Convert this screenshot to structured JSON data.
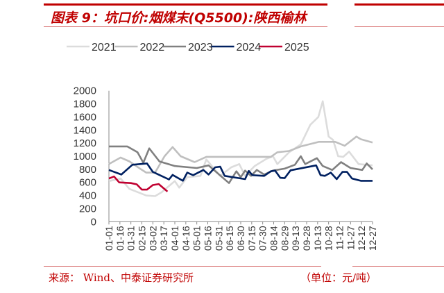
{
  "title": "图表 9：坑口价:烟煤末(Q5500):陕西榆林",
  "source": "来源：  Wind、中泰证券研究所",
  "unit": "（单位：元/吨）",
  "chart_data": {
    "type": "line",
    "title": "图表 9：坑口价:烟煤末(Q5500):陕西榆林",
    "xlabel": "",
    "ylabel": "",
    "ylim": [
      0,
      2000
    ],
    "yticks": [
      "0",
      "200",
      "400",
      "600",
      "800",
      "1000",
      "1200",
      "1400",
      "1600",
      "1800",
      "2000"
    ],
    "xticks": [
      "01-01",
      "01-16",
      "01-31",
      "02-15",
      "03-02",
      "03-17",
      "04-01",
      "04-16",
      "05-01",
      "05-16",
      "05-31",
      "06-15",
      "06-30",
      "07-15",
      "07-30",
      "08-14",
      "08-29",
      "09-13",
      "09-28",
      "10-13",
      "10-28",
      "11-12",
      "11-27",
      "12-12",
      "12-27"
    ],
    "grid": false,
    "legend": "top",
    "series": [
      {
        "name": "2021",
        "color": "#dcdcdc",
        "points": [
          [
            "01-01",
            620
          ],
          [
            "01-17",
            660
          ],
          [
            "01-29",
            500
          ],
          [
            "02-21",
            400
          ],
          [
            "03-05",
            390
          ],
          [
            "03-14",
            450
          ],
          [
            "04-01",
            620
          ],
          [
            "04-07",
            520
          ],
          [
            "04-18",
            680
          ],
          [
            "05-06",
            700
          ],
          [
            "05-14",
            950
          ],
          [
            "06-02",
            700
          ],
          [
            "06-17",
            830
          ],
          [
            "06-28",
            880
          ],
          [
            "07-06",
            700
          ],
          [
            "07-19",
            850
          ],
          [
            "08-04",
            960
          ],
          [
            "08-13",
            1000
          ],
          [
            "08-19",
            880
          ],
          [
            "09-04",
            1060
          ],
          [
            "09-20",
            1180
          ],
          [
            "10-03",
            1480
          ],
          [
            "10-14",
            1600
          ],
          [
            "10-20",
            1840
          ],
          [
            "10-28",
            1300
          ],
          [
            "11-03",
            1250
          ],
          [
            "11-10",
            1000
          ],
          [
            "11-17",
            990
          ],
          [
            "11-25",
            1070
          ],
          [
            "12-08",
            880
          ],
          [
            "12-27",
            860
          ]
        ]
      },
      {
        "name": "2022",
        "color": "#bfbfbf",
        "points": [
          [
            "01-01",
            880
          ],
          [
            "01-17",
            980
          ],
          [
            "01-29",
            920
          ],
          [
            "02-14",
            800
          ],
          [
            "02-21",
            750
          ],
          [
            "03-05",
            750
          ],
          [
            "03-18",
            1000
          ],
          [
            "03-29",
            1140
          ],
          [
            "04-09",
            1000
          ],
          [
            "04-28",
            910
          ],
          [
            "05-14",
            990
          ],
          [
            "08-10",
            990
          ],
          [
            "08-19",
            1060
          ],
          [
            "09-04",
            1080
          ],
          [
            "09-20",
            1150
          ],
          [
            "10-15",
            1220
          ],
          [
            "11-06",
            1220
          ],
          [
            "11-19",
            1160
          ],
          [
            "12-05",
            1300
          ],
          [
            "12-11",
            1260
          ],
          [
            "12-27",
            1210
          ]
        ]
      },
      {
        "name": "2023",
        "color": "#808080",
        "points": [
          [
            "01-01",
            1150
          ],
          [
            "01-26",
            1150
          ],
          [
            "02-09",
            1060
          ],
          [
            "02-17",
            900
          ],
          [
            "02-25",
            1120
          ],
          [
            "03-11",
            920
          ],
          [
            "04-01",
            850
          ],
          [
            "05-01",
            820
          ],
          [
            "05-17",
            860
          ],
          [
            "06-14",
            590
          ],
          [
            "06-24",
            770
          ],
          [
            "06-30",
            680
          ],
          [
            "07-06",
            780
          ],
          [
            "07-14",
            700
          ],
          [
            "07-22",
            790
          ],
          [
            "08-01",
            720
          ],
          [
            "08-13",
            780
          ],
          [
            "08-29",
            810
          ],
          [
            "09-12",
            870
          ],
          [
            "09-20",
            1000
          ],
          [
            "09-26",
            880
          ],
          [
            "10-12",
            970
          ],
          [
            "10-20",
            850
          ],
          [
            "11-02",
            790
          ],
          [
            "11-14",
            910
          ],
          [
            "11-27",
            820
          ],
          [
            "12-13",
            790
          ],
          [
            "12-19",
            890
          ],
          [
            "12-27",
            800
          ]
        ]
      },
      {
        "name": "2024",
        "color": "#002060",
        "points": [
          [
            "01-01",
            790
          ],
          [
            "01-18",
            720
          ],
          [
            "02-02",
            870
          ],
          [
            "02-22",
            890
          ],
          [
            "03-02",
            760
          ],
          [
            "03-24",
            645
          ],
          [
            "03-29",
            715
          ],
          [
            "04-12",
            625
          ],
          [
            "04-18",
            750
          ],
          [
            "04-26",
            710
          ],
          [
            "05-10",
            790
          ],
          [
            "05-17",
            720
          ],
          [
            "05-26",
            830
          ],
          [
            "06-02",
            840
          ],
          [
            "06-08",
            700
          ],
          [
            "07-06",
            650
          ],
          [
            "07-11",
            775
          ],
          [
            "07-16",
            710
          ],
          [
            "08-01",
            700
          ],
          [
            "08-10",
            770
          ],
          [
            "08-16",
            780
          ],
          [
            "08-23",
            670
          ],
          [
            "08-29",
            665
          ],
          [
            "09-06",
            785
          ],
          [
            "10-11",
            860
          ],
          [
            "10-17",
            710
          ],
          [
            "10-23",
            700
          ],
          [
            "10-31",
            750
          ],
          [
            "11-08",
            650
          ],
          [
            "11-16",
            760
          ],
          [
            "11-22",
            760
          ],
          [
            "11-29",
            660
          ],
          [
            "12-11",
            625
          ],
          [
            "12-27",
            625
          ]
        ]
      },
      {
        "name": "2025",
        "color": "#c00030",
        "points": [
          [
            "01-01",
            660
          ],
          [
            "01-08",
            690
          ],
          [
            "01-15",
            600
          ],
          [
            "01-31",
            590
          ],
          [
            "02-08",
            570
          ],
          [
            "02-15",
            490
          ],
          [
            "02-22",
            490
          ],
          [
            "03-02",
            560
          ],
          [
            "03-10",
            575
          ],
          [
            "03-22",
            460
          ]
        ]
      }
    ]
  }
}
